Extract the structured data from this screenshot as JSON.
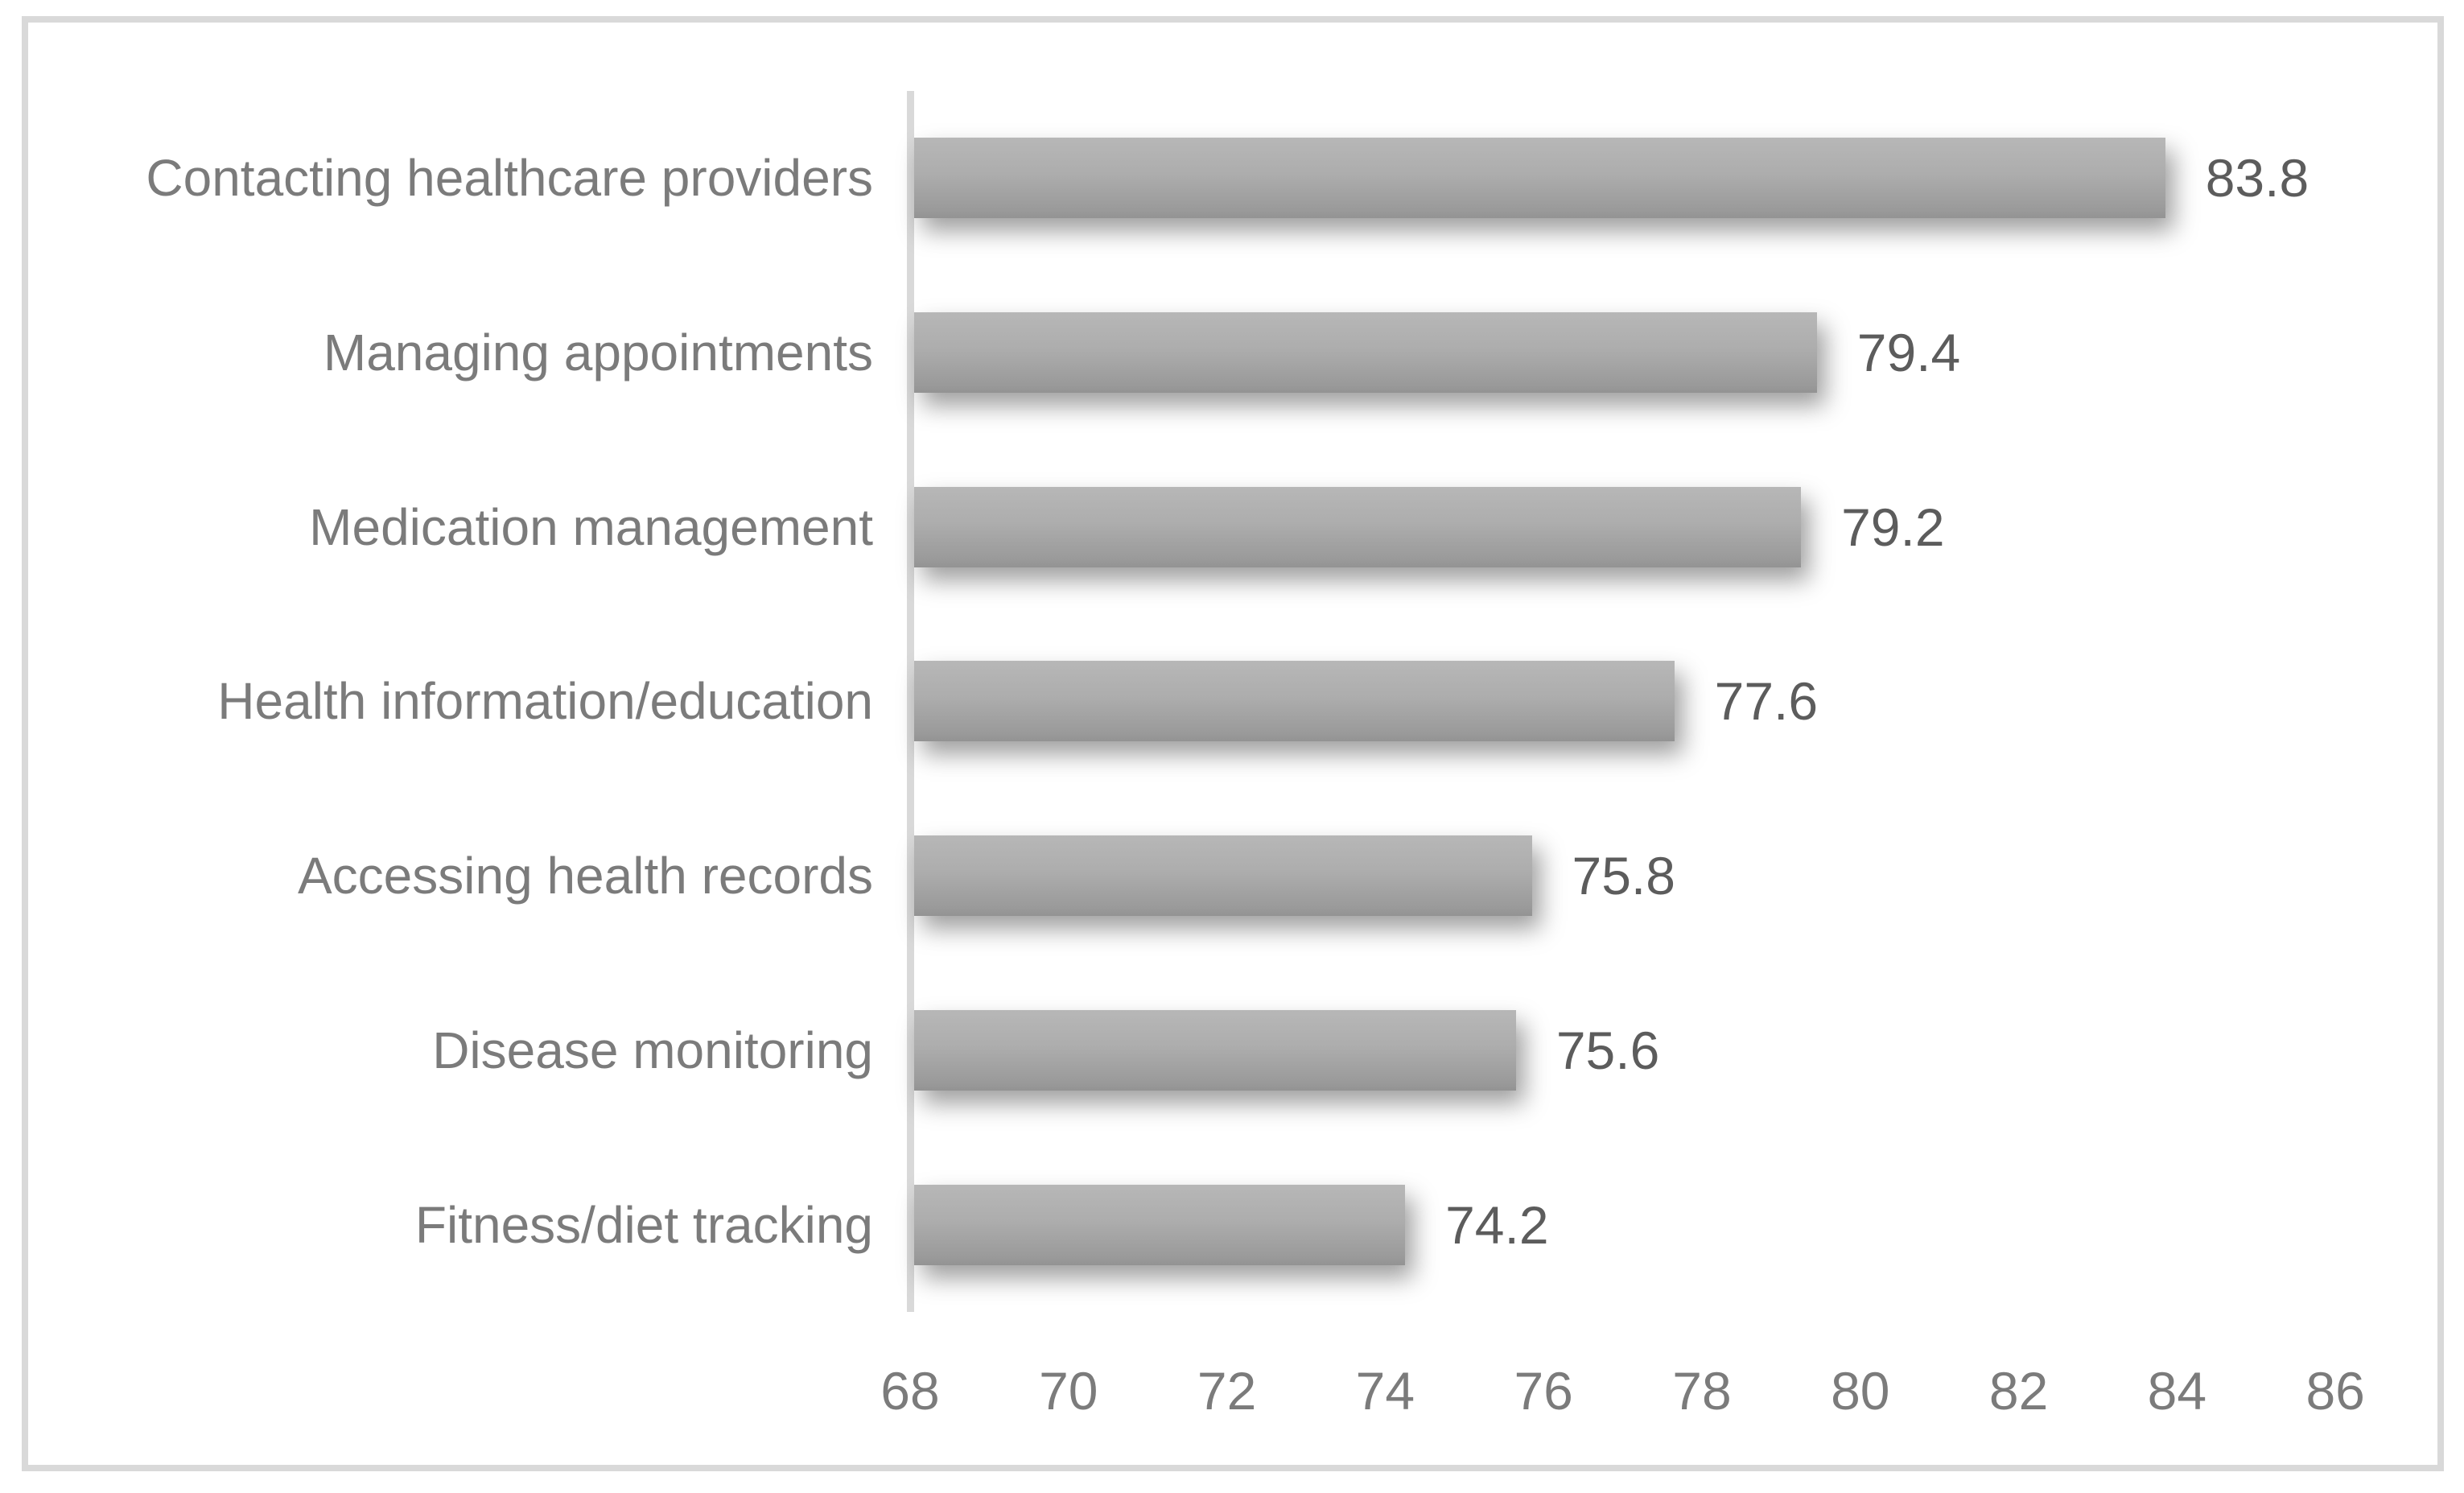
{
  "chart_data": {
    "type": "bar",
    "orientation": "horizontal",
    "title": "",
    "xlabel": "",
    "ylabel": "",
    "categories": [
      "Contacting healthcare providers",
      "Managing appointments",
      "Medication management",
      "Health information/education",
      "Accessing health records",
      "Disease monitoring",
      "Fitness/diet tracking"
    ],
    "values": [
      83.8,
      79.4,
      79.2,
      77.6,
      75.8,
      75.6,
      74.2
    ],
    "value_labels": [
      "83.8",
      "79.4",
      "79.2",
      "77.6",
      "75.8",
      "75.6",
      "74.2"
    ],
    "xlim": [
      68,
      86
    ],
    "x_ticks": [
      68,
      70,
      72,
      74,
      76,
      78,
      80,
      82,
      84,
      86
    ],
    "grid": false,
    "legend": "none",
    "colors": {
      "bar_top": "#b7b7b7",
      "bar_bottom": "#939393",
      "axis_line": "#d9d9d9",
      "frame_border": "#d9d9d9",
      "category_label": "#7b7b7b",
      "value_label": "#5c5c5c",
      "tick_label": "#7b7b7b",
      "background": "#ffffff"
    }
  }
}
